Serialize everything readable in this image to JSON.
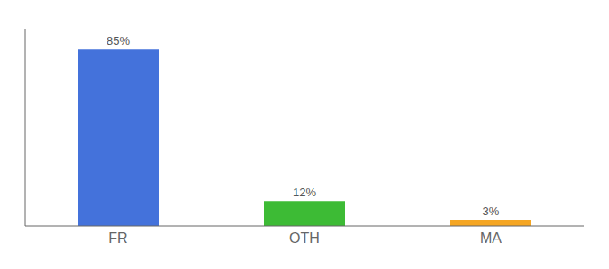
{
  "chart_data": {
    "type": "bar",
    "categories": [
      "FR",
      "OTH",
      "MA"
    ],
    "values": [
      85,
      12,
      3
    ],
    "value_labels": [
      "85%",
      "12%",
      "3%"
    ],
    "colors": [
      "#4472db",
      "#3dbb35",
      "#f5a623"
    ],
    "ylim": [
      0,
      95
    ],
    "data_labels": true,
    "tick_labels": "x"
  }
}
